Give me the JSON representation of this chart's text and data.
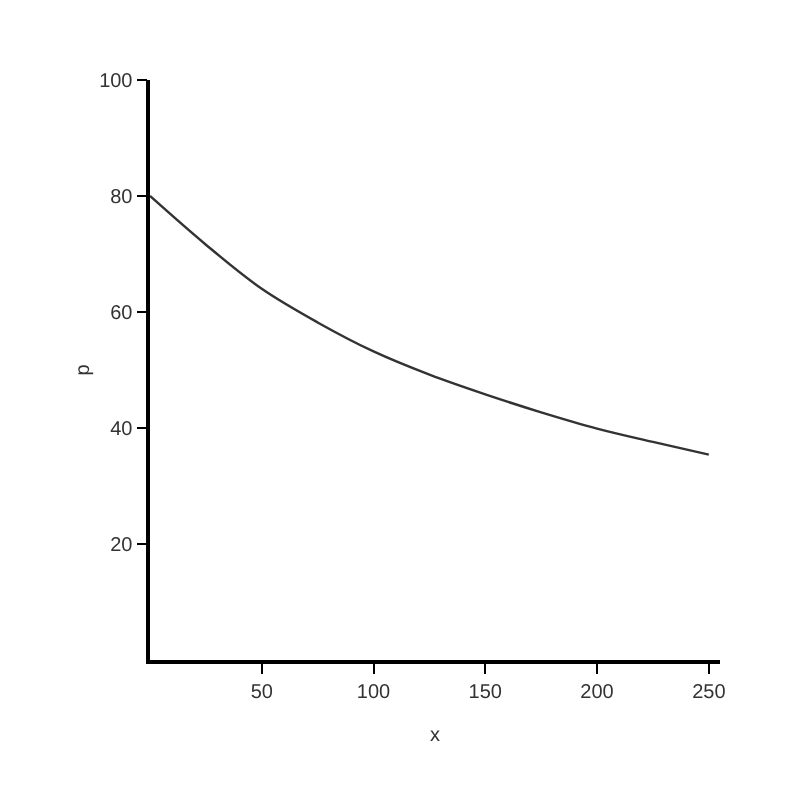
{
  "chart_data": {
    "type": "line",
    "xlabel": "x",
    "ylabel": "p",
    "x": [
      0,
      25,
      50,
      75,
      100,
      125,
      150,
      175,
      200,
      225,
      250
    ],
    "series": [
      {
        "color": "#333333",
        "values": [
          80,
          71.6,
          64,
          58.2,
          53.2,
          49.2,
          45.8,
          42.7,
          39.9,
          37.6,
          35.4
        ]
      }
    ],
    "xlim": [
      0,
      255
    ],
    "ylim": [
      0,
      100
    ],
    "xticks": [
      50,
      100,
      150,
      200,
      250
    ],
    "yticks": [
      20,
      40,
      60,
      80,
      100
    ],
    "grid": false,
    "marker": "none",
    "line_style": "solid"
  }
}
